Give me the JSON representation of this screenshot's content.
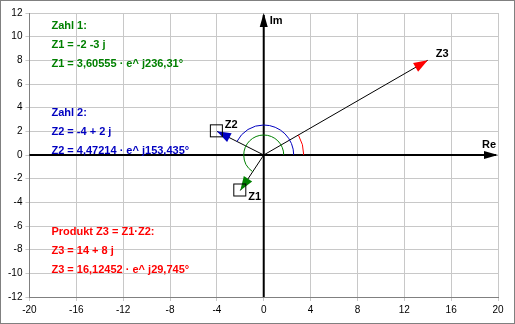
{
  "chart_data": {
    "type": "scatter",
    "xlabel": "Re",
    "ylabel": "Im",
    "xlim": [
      -20,
      20
    ],
    "xticks": [
      -20,
      -16,
      -12,
      -8,
      -4,
      0,
      4,
      8,
      12,
      16,
      20
    ],
    "ylim": [
      -12,
      12
    ],
    "yticks": [
      -12,
      -10,
      -8,
      -6,
      -4,
      -2,
      0,
      2,
      4,
      6,
      8,
      10,
      12
    ],
    "grid": true,
    "series": [
      {
        "name": "Z1",
        "color": "#008000",
        "x": [
          0,
          -2
        ],
        "y": [
          0,
          -3
        ]
      },
      {
        "name": "Z2",
        "color": "#0000c0",
        "x": [
          0,
          -4
        ],
        "y": [
          0,
          2
        ]
      },
      {
        "name": "Z3",
        "color": "#ff0000",
        "x": [
          0,
          14
        ],
        "y": [
          0,
          8
        ]
      }
    ],
    "annotations": [
      {
        "color": "#008000",
        "lines": [
          "Zahl 1:",
          "Z1 = -2 -3 j",
          "Z1 = 3,60555 · e^ j236,31°"
        ]
      },
      {
        "color": "#0000c0",
        "lines": [
          "Zahl 2:",
          "Z2 = -4 + 2 j",
          "Z2 = 4,47214 · e^ j153,435°"
        ]
      },
      {
        "color": "#ff0000",
        "lines": [
          "Produkt Z3 = Z1·Z2:",
          "Z3 = 14 + 8 j",
          "Z3 = 16,12452 · e^ j29,745°"
        ]
      }
    ]
  }
}
